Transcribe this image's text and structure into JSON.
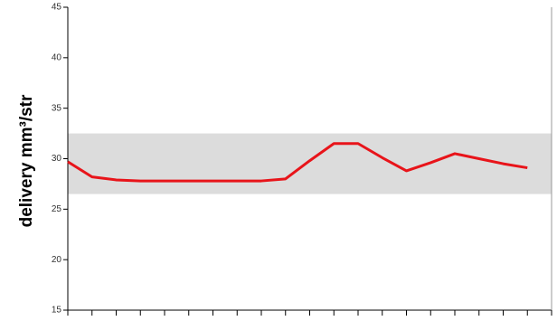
{
  "chart_data": {
    "type": "line",
    "y_label": "delivery mm³/str",
    "categories": [
      null,
      null,
      null,
      null,
      null,
      null,
      null,
      null,
      null,
      null,
      null,
      null,
      null,
      null,
      null,
      null,
      null,
      null,
      null,
      null,
      null
    ],
    "series": [
      {
        "color": "#e8141a",
        "values": [
          29.7,
          28.2,
          27.9,
          27.8,
          27.8,
          27.8,
          27.8,
          27.8,
          27.8,
          28.0,
          29.8,
          31.5,
          31.5,
          30.1,
          28.8,
          29.6,
          30.5,
          30.0,
          29.5,
          29.1,
          null
        ]
      }
    ],
    "band": [
      26.5,
      32.5
    ],
    "band_color": "#dcdcdc",
    "ylim": [
      15,
      45
    ],
    "yticks": [
      15,
      20,
      25,
      30,
      35,
      40,
      45
    ]
  }
}
